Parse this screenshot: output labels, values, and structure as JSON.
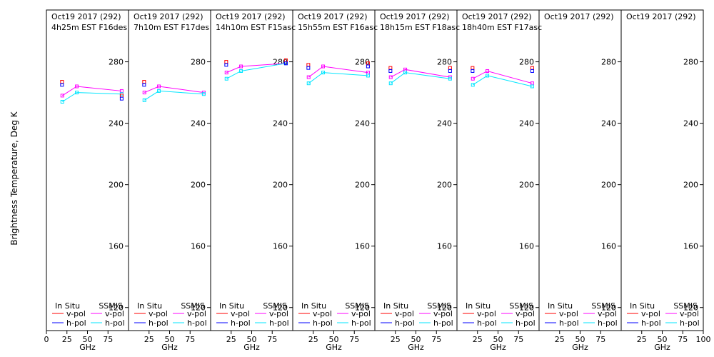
{
  "y_axis_label": "Brightness Temperature, Deg K",
  "x_axis_label": "GHz",
  "legend_headers": [
    "In Situ",
    "SSMIS"
  ],
  "legend_entries": [
    "v-pol",
    "h-pol"
  ],
  "colors": {
    "insitu_v": "#ff0000",
    "insitu_h": "#0000ff",
    "ssmis_v": "#ff00ff",
    "ssmis_h": "#00e5ff",
    "axis": "#000000"
  },
  "chart_data": [
    {
      "type": "line",
      "title": "Oct19 2017 (292)",
      "subtitle": "4h25m EST F16des",
      "xlim": [
        0,
        100
      ],
      "ylim": [
        105,
        297
      ],
      "x_ticks": [
        0,
        25,
        50,
        75
      ],
      "y_ticks": [
        120,
        160,
        200,
        240,
        280
      ],
      "insitu": {
        "x": [
          19
        ],
        "v": [
          267
        ],
        "h": [
          265
        ]
      },
      "ssmis": {
        "x": [
          19.35,
          37,
          91.65
        ],
        "v": [
          258,
          264,
          261
        ],
        "h": [
          254,
          260,
          259
        ]
      },
      "insitu_high": {
        "x": [
          91.65
        ],
        "v": [
          258
        ],
        "h": [
          256
        ]
      }
    },
    {
      "type": "line",
      "title": "Oct19 2017 (292)",
      "subtitle": "7h10m EST F17des",
      "xlim": [
        0,
        100
      ],
      "ylim": [
        105,
        297
      ],
      "x_ticks": [
        25,
        50,
        75
      ],
      "y_ticks": [
        120,
        160,
        200,
        240,
        280
      ],
      "insitu": {
        "x": [
          19
        ],
        "v": [
          267
        ],
        "h": [
          265
        ]
      },
      "ssmis": {
        "x": [
          19.35,
          37,
          91.65
        ],
        "v": [
          260,
          264,
          260
        ],
        "h": [
          255,
          261,
          259
        ]
      },
      "insitu_high": {
        "x": [],
        "v": [],
        "h": []
      }
    },
    {
      "type": "line",
      "title": "Oct19 2017 (292)",
      "subtitle": "14h10m EST F15asc",
      "xlim": [
        0,
        100
      ],
      "ylim": [
        105,
        297
      ],
      "x_ticks": [
        25,
        50,
        75
      ],
      "y_ticks": [
        120,
        160,
        200,
        240,
        280
      ],
      "insitu": {
        "x": [
          19
        ],
        "v": [
          280
        ],
        "h": [
          278
        ]
      },
      "ssmis": {
        "x": [
          19.35,
          37,
          91.65
        ],
        "v": [
          273,
          277,
          279
        ],
        "h": [
          269,
          274,
          279
        ]
      },
      "insitu_high": {
        "x": [
          91.65
        ],
        "v": [
          281
        ],
        "h": [
          279
        ]
      }
    },
    {
      "type": "line",
      "title": "Oct19 2017 (292)",
      "subtitle": "15h55m EST F16asc",
      "xlim": [
        0,
        100
      ],
      "ylim": [
        105,
        297
      ],
      "x_ticks": [
        25,
        50,
        75
      ],
      "y_ticks": [
        120,
        160,
        200,
        240,
        280
      ],
      "insitu": {
        "x": [
          19
        ],
        "v": [
          278
        ],
        "h": [
          276
        ]
      },
      "ssmis": {
        "x": [
          19.35,
          37,
          91.65
        ],
        "v": [
          270,
          277,
          273
        ],
        "h": [
          266,
          273,
          271
        ]
      },
      "insitu_high": {
        "x": [
          91.65
        ],
        "v": [
          279
        ],
        "h": [
          277
        ]
      }
    },
    {
      "type": "line",
      "title": "Oct19 2017 (292)",
      "subtitle": "18h15m EST F18asc",
      "xlim": [
        0,
        100
      ],
      "ylim": [
        105,
        297
      ],
      "x_ticks": [
        25,
        50,
        75
      ],
      "y_ticks": [
        120,
        160,
        200,
        240,
        280
      ],
      "insitu": {
        "x": [
          19
        ],
        "v": [
          276
        ],
        "h": [
          274
        ]
      },
      "ssmis": {
        "x": [
          19.35,
          37,
          91.65
        ],
        "v": [
          270,
          275,
          270
        ],
        "h": [
          266,
          273,
          269
        ]
      },
      "insitu_high": {
        "x": [
          91.65
        ],
        "v": [
          276
        ],
        "h": [
          274
        ]
      }
    },
    {
      "type": "line",
      "title": "Oct19 2017 (292)",
      "subtitle": "18h40m EST F17asc",
      "xlim": [
        0,
        100
      ],
      "ylim": [
        105,
        297
      ],
      "x_ticks": [
        25,
        50,
        75
      ],
      "y_ticks": [
        120,
        160,
        200,
        240,
        280
      ],
      "insitu": {
        "x": [
          19
        ],
        "v": [
          276
        ],
        "h": [
          274
        ]
      },
      "ssmis": {
        "x": [
          19.35,
          37,
          91.65
        ],
        "v": [
          269,
          274,
          266
        ],
        "h": [
          265,
          271,
          264
        ]
      },
      "insitu_high": {
        "x": [
          91.65
        ],
        "v": [
          276
        ],
        "h": [
          274
        ]
      }
    },
    {
      "type": "line",
      "title": "Oct19 2017 (292)",
      "subtitle": "",
      "xlim": [
        0,
        100
      ],
      "ylim": [
        105,
        297
      ],
      "x_ticks": [
        25,
        50,
        75
      ],
      "y_ticks": [
        120,
        160,
        200,
        240,
        280
      ],
      "insitu": {
        "x": [],
        "v": [],
        "h": []
      },
      "ssmis": {
        "x": [],
        "v": [],
        "h": []
      },
      "insitu_high": {
        "x": [],
        "v": [],
        "h": []
      }
    },
    {
      "type": "line",
      "title": "Oct19 2017 (292)",
      "subtitle": "",
      "xlim": [
        0,
        100
      ],
      "ylim": [
        105,
        297
      ],
      "x_ticks": [
        25,
        50,
        75,
        100
      ],
      "y_ticks": [
        120,
        160,
        200,
        240,
        280
      ],
      "insitu": {
        "x": [],
        "v": [],
        "h": []
      },
      "ssmis": {
        "x": [],
        "v": [],
        "h": []
      },
      "insitu_high": {
        "x": [],
        "v": [],
        "h": []
      }
    }
  ]
}
